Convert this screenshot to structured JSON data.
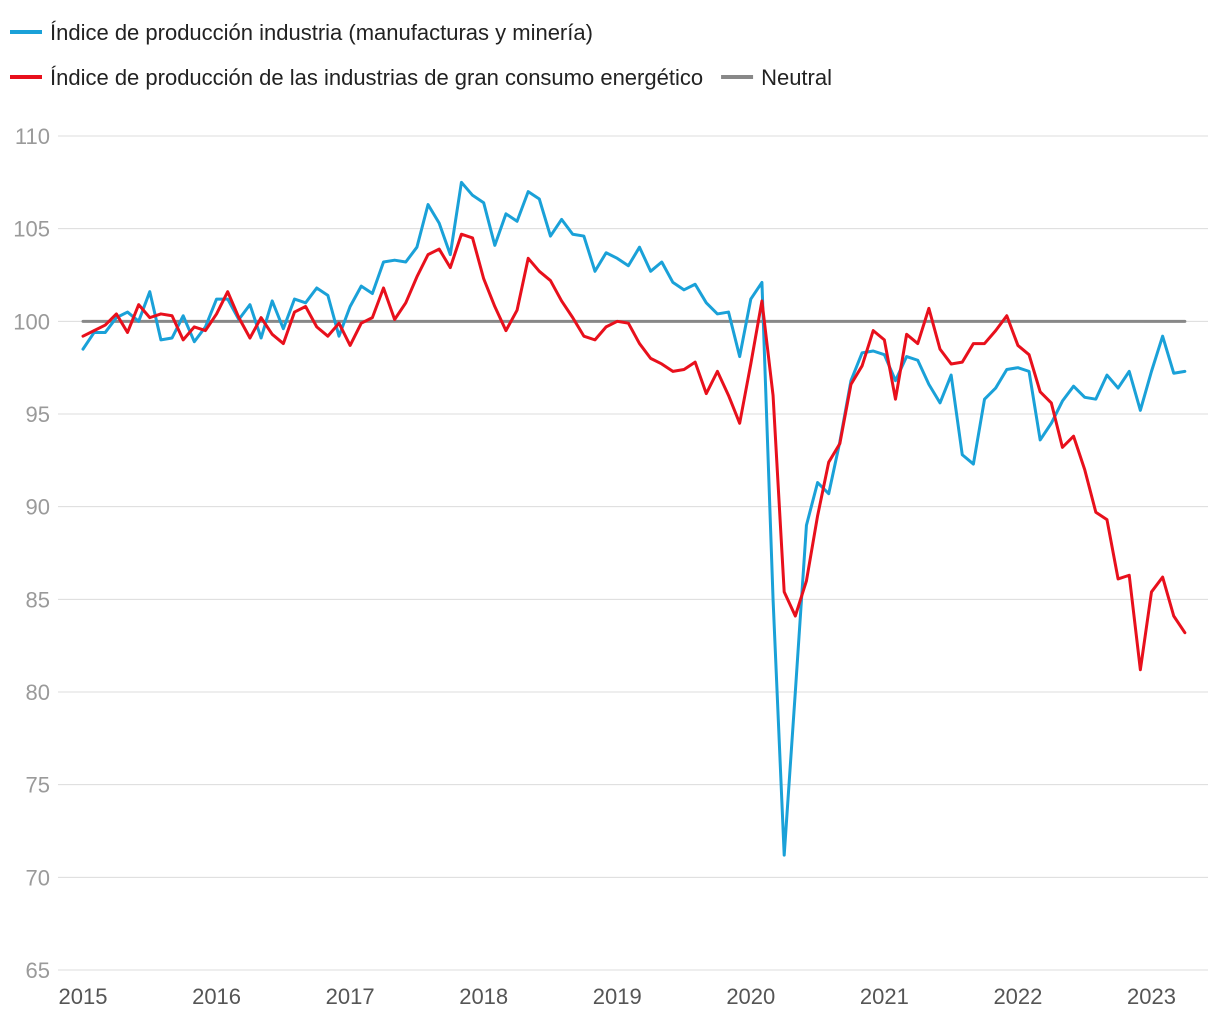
{
  "chart_data": {
    "type": "line",
    "title": "",
    "xlabel": "",
    "ylabel": "",
    "ylim": [
      65,
      110
    ],
    "yticks": [
      65,
      70,
      75,
      80,
      85,
      90,
      95,
      100,
      105,
      110
    ],
    "xticks": [
      "2015",
      "2016",
      "2017",
      "2018",
      "2019",
      "2020",
      "2021",
      "2022",
      "2023"
    ],
    "x_start": "2015-01",
    "x_end": "2023-04",
    "grid": "horizontal",
    "legend_position": "top-left",
    "series": [
      {
        "name": "Índice de producción industria (manufacturas y minería)",
        "color": "#1aa1d8",
        "values": [
          98.5,
          99.4,
          99.4,
          100.2,
          100.5,
          100.0,
          101.6,
          99.0,
          99.1,
          100.3,
          98.9,
          99.7,
          101.2,
          101.2,
          100.1,
          100.9,
          99.1,
          101.1,
          99.6,
          101.2,
          101.0,
          101.8,
          101.4,
          99.2,
          100.8,
          101.9,
          101.5,
          103.2,
          103.3,
          103.2,
          104.0,
          106.3,
          105.3,
          103.6,
          107.5,
          106.8,
          106.4,
          104.1,
          105.8,
          105.4,
          107.0,
          106.6,
          104.6,
          105.5,
          104.7,
          104.6,
          102.7,
          103.7,
          103.4,
          103.0,
          104.0,
          102.7,
          103.2,
          102.1,
          101.7,
          102.0,
          101.0,
          100.4,
          100.5,
          98.1,
          101.2,
          102.1,
          85.0,
          71.2,
          80.0,
          89.0,
          91.3,
          90.7,
          93.5,
          96.8,
          98.3,
          98.4,
          98.2,
          96.8,
          98.1,
          97.9,
          96.6,
          95.6,
          97.1,
          92.8,
          92.3,
          95.8,
          96.4,
          97.4,
          97.5,
          97.3,
          93.6,
          94.5,
          95.7,
          96.5,
          95.9,
          95.8,
          97.1,
          96.4,
          97.3,
          95.2,
          97.3,
          99.2,
          97.2,
          97.3
        ]
      },
      {
        "name": "Índice de producción de las industrias de gran consumo energético",
        "color": "#e8101c",
        "values": [
          99.2,
          99.5,
          99.8,
          100.4,
          99.4,
          100.9,
          100.2,
          100.4,
          100.3,
          99.0,
          99.7,
          99.5,
          100.4,
          101.6,
          100.2,
          99.1,
          100.2,
          99.3,
          98.8,
          100.5,
          100.8,
          99.7,
          99.2,
          99.9,
          98.7,
          99.9,
          100.2,
          101.8,
          100.1,
          101.0,
          102.4,
          103.6,
          103.9,
          102.9,
          104.7,
          104.5,
          102.3,
          100.8,
          99.5,
          100.6,
          103.4,
          102.7,
          102.2,
          101.1,
          100.2,
          99.2,
          99.0,
          99.7,
          100.0,
          99.9,
          98.8,
          98.0,
          97.7,
          97.3,
          97.4,
          97.8,
          96.1,
          97.3,
          96.0,
          94.5,
          97.7,
          101.1,
          96.0,
          85.4,
          84.1,
          86.0,
          89.5,
          92.4,
          93.4,
          96.6,
          97.6,
          99.5,
          99.0,
          95.8,
          99.3,
          98.8,
          100.7,
          98.5,
          97.7,
          97.8,
          98.8,
          98.8,
          99.5,
          100.3,
          98.7,
          98.2,
          96.2,
          95.6,
          93.2,
          93.8,
          92.0,
          89.7,
          89.3,
          86.1,
          86.3,
          81.2,
          85.4,
          86.2,
          84.1,
          83.2
        ]
      },
      {
        "name": "Neutral",
        "color": "#888888",
        "constant": 100
      }
    ]
  }
}
